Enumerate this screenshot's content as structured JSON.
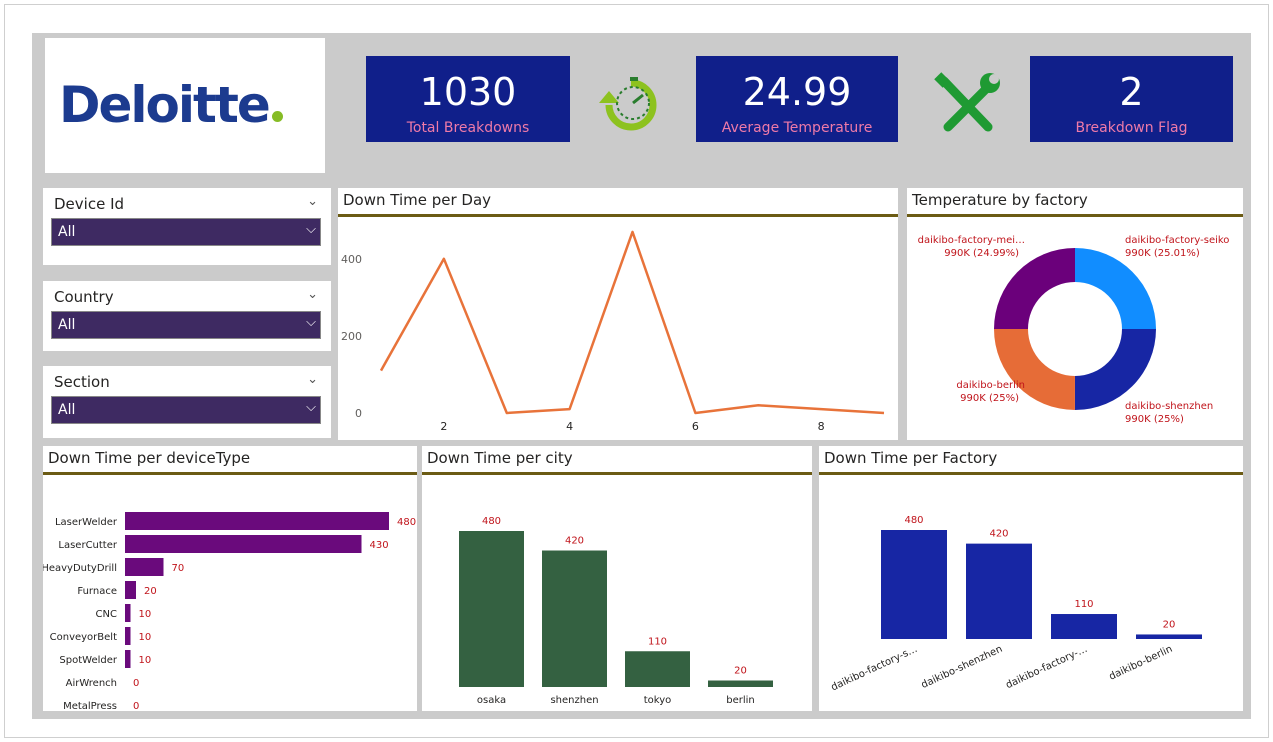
{
  "logo": {
    "text": "Deloitte"
  },
  "kpis": [
    {
      "value": "1030",
      "label": "Total Breakdowns"
    },
    {
      "value": "24.99",
      "label": "Average Temperature"
    },
    {
      "value": "2",
      "label": "Breakdown Flag"
    }
  ],
  "icons": {
    "timer": "stopwatch-refresh-icon",
    "tools": "wrench-screwdriver-icon"
  },
  "slicers": [
    {
      "title": "Device Id",
      "value": "All"
    },
    {
      "title": "Country",
      "value": "All"
    },
    {
      "title": "Section",
      "value": "All"
    }
  ],
  "colors": {
    "kpi_bg": "#101f8a",
    "kpi_label": "#ee7aa8",
    "line": "#e8733a",
    "device_bar": "#6a0a7c",
    "city_bar": "#346141",
    "factory_bar": "#1726a4",
    "data_label": "#c0141b",
    "title_rule": "#6b5b14",
    "slicer_bg": "#3e2a62"
  },
  "chart_data": [
    {
      "id": "downtime_per_day",
      "type": "line",
      "title": "Down Time per Day",
      "x": [
        1,
        2,
        3,
        4,
        5,
        6,
        7,
        8,
        9
      ],
      "values": [
        110,
        400,
        0,
        10,
        470,
        0,
        20,
        10,
        0
      ],
      "x_ticks": [
        "2",
        "4",
        "6",
        "8"
      ],
      "x_tick_values": [
        2,
        4,
        6,
        8
      ],
      "y_ticks": [
        "0",
        "200",
        "400"
      ],
      "y_tick_values": [
        0,
        200,
        400
      ],
      "xlim": [
        1,
        9
      ],
      "ylim": [
        0,
        480
      ]
    },
    {
      "id": "temperature_by_factory",
      "type": "pie",
      "title": "Temperature by factory",
      "labels": [
        "daikibo-factory-seiko",
        "daikibo-shenzhen",
        "daikibo-berlin",
        "daikibo-factory-mei…"
      ],
      "values": [
        25.01,
        25,
        25,
        24.99
      ],
      "value_labels": [
        "990K (25.01%)",
        "990K (25%)",
        "990K (25%)",
        "990K (24.99%)"
      ],
      "colors": [
        "#118dff",
        "#1726a4",
        "#e66c37",
        "#6b007b"
      ]
    },
    {
      "id": "downtime_per_devicetype",
      "type": "bar",
      "orientation": "horizontal",
      "title": "Down Time per deviceType",
      "categories": [
        "LaserWelder",
        "LaserCutter",
        "HeavyDutyDrill",
        "Furnace",
        "CNC",
        "ConveyorBelt",
        "SpotWelder",
        "AirWrench",
        "MetalPress"
      ],
      "values": [
        480,
        430,
        70,
        20,
        10,
        10,
        10,
        0,
        0
      ],
      "value_labels": [
        "480",
        "430",
        "70",
        "20",
        "10",
        "10",
        "10",
        "0",
        "0"
      ],
      "xlim": [
        0,
        480
      ]
    },
    {
      "id": "downtime_per_city",
      "type": "bar",
      "title": "Down Time per city",
      "categories": [
        "osaka",
        "shenzhen",
        "tokyo",
        "berlin"
      ],
      "values": [
        480,
        420,
        110,
        20
      ],
      "value_labels": [
        "480",
        "420",
        "110",
        "20"
      ],
      "ylim": [
        0,
        480
      ]
    },
    {
      "id": "downtime_per_factory",
      "type": "bar",
      "title": "Down Time per Factory",
      "categories": [
        "daikibo-factory-s…",
        "daikibo-shenzhen",
        "daikibo-factory-…",
        "daikibo-berlin"
      ],
      "values": [
        480,
        420,
        110,
        20
      ],
      "value_labels": [
        "480",
        "420",
        "110",
        "20"
      ],
      "ylim": [
        0,
        480
      ]
    }
  ]
}
